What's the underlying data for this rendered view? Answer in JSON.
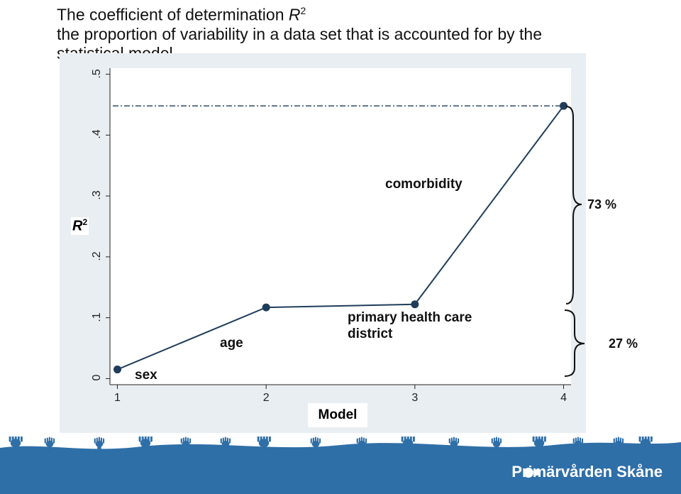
{
  "title": {
    "line1": "The coefficient of determination ",
    "r": "R",
    "sup": "2",
    "line2": "the proportion of variability in a data set that is accounted for by the statistical model"
  },
  "chart_data": {
    "type": "line",
    "x": [
      1,
      2,
      3,
      4
    ],
    "values": [
      0.015,
      0.117,
      0.122,
      0.448
    ],
    "xlim": [
      0.95,
      4.05
    ],
    "ylim": [
      -0.01,
      0.51
    ],
    "xticks": [
      "1",
      "2",
      "3",
      "4"
    ],
    "yticks": [
      {
        "v": 0,
        "label": "0"
      },
      {
        "v": 0.1,
        "label": ".1"
      },
      {
        "v": 0.2,
        "label": ".2"
      },
      {
        "v": 0.3,
        "label": ".3"
      },
      {
        "v": 0.4,
        "label": ".4"
      },
      {
        "v": 0.5,
        "label": ".5"
      }
    ],
    "xlabel": "Model",
    "ylabel": "R",
    "ylabel_sup": "2",
    "reference_line": 0.448,
    "annotations": {
      "sex": "sex",
      "age": "age",
      "phc1": "primary health care",
      "phc2": "district",
      "comorbidity": "comorbidity"
    },
    "brace_upper_label": "73 %",
    "brace_lower_label": "27 %",
    "line_color": "#1f3d5a",
    "marker_color": "#1f3d5a"
  },
  "footer": {
    "brand": "Primärvården Skåne",
    "color": "#2f6fa8"
  }
}
